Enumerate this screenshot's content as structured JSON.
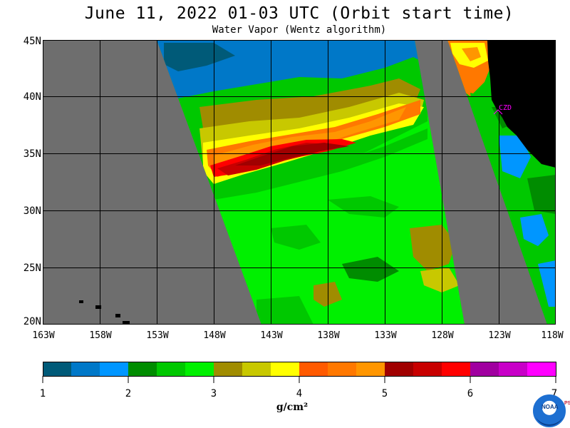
{
  "title": "June 11, 2022  01-03 UTC  (Orbit start time)",
  "subtitle": "Water Vapor (Wentz algorithm)",
  "lat_labels": [
    "45N",
    "40N",
    "35N",
    "30N",
    "25N",
    "20N"
  ],
  "lon_labels": [
    "163W",
    "158W",
    "153W",
    "148W",
    "143W",
    "138W",
    "133W",
    "128W",
    "123W",
    "118W"
  ],
  "station_label": "CZD",
  "colorbar": {
    "labels": [
      "1",
      "2",
      "3",
      "4",
      "5",
      "6",
      "7"
    ],
    "units": "g/cm²",
    "colors": [
      "#005a78",
      "#0078c8",
      "#0096ff",
      "#008c00",
      "#00c800",
      "#00f000",
      "#a08c00",
      "#c8c800",
      "#ffff00",
      "#ff5a00",
      "#ff7800",
      "#ff9600",
      "#a00000",
      "#c80000",
      "#ff0000",
      "#a000a0",
      "#c800c8",
      "#ff00ff"
    ]
  },
  "colors": {
    "no_data": "#6e6e6e",
    "land": "#000000",
    "grid": "#000000"
  },
  "logo": {
    "text": "NOAA",
    "side_text": "PSL"
  }
}
